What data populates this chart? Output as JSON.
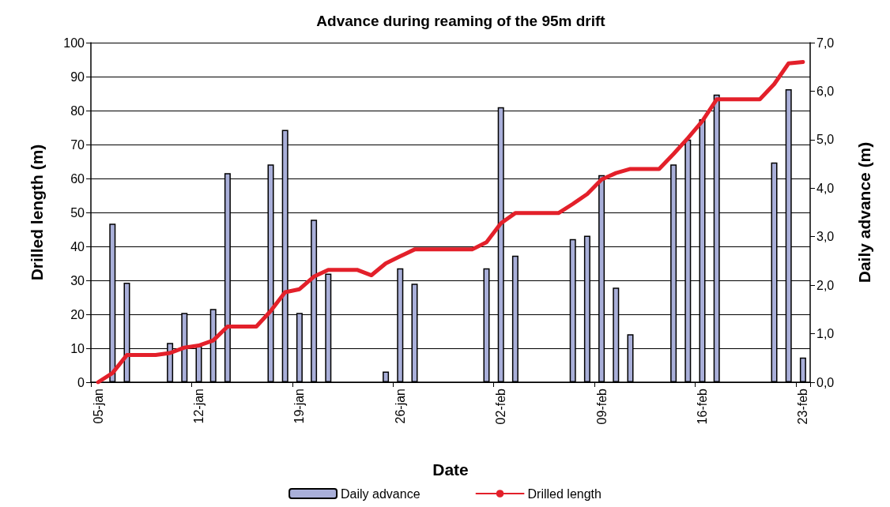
{
  "chart_data": {
    "type": "bar",
    "title": "Advance during reaming of the 95m drift",
    "xlabel": "Date",
    "ylabel": "Drilled length (m)",
    "y2label": "Daily advance (m)",
    "categories": [
      "05-jan",
      null,
      null,
      null,
      null,
      null,
      null,
      "12-jan",
      null,
      null,
      null,
      null,
      null,
      null,
      "19-jan",
      null,
      null,
      null,
      null,
      null,
      null,
      "26-jan",
      null,
      null,
      null,
      null,
      null,
      null,
      "02-feb",
      null,
      null,
      null,
      null,
      null,
      null,
      "09-feb",
      null,
      null,
      null,
      null,
      null,
      null,
      "16-feb",
      null,
      null,
      null,
      null,
      null,
      null,
      "23-feb"
    ],
    "series": [
      {
        "name": "Daily advance",
        "axis": "y2",
        "color": "#a9afd9",
        "values": [
          null,
          3.27,
          2.05,
          null,
          null,
          0.81,
          1.43,
          0.75,
          1.51,
          4.31,
          null,
          null,
          4.49,
          5.2,
          1.43,
          3.35,
          2.24,
          null,
          null,
          null,
          0.22,
          2.35,
          2.03,
          null,
          null,
          null,
          null,
          2.35,
          5.67,
          2.61,
          null,
          null,
          null,
          2.95,
          3.02,
          4.27,
          1.95,
          0.99,
          null,
          null,
          4.49,
          5.0,
          5.42,
          5.93,
          null,
          null,
          null,
          4.53,
          6.04,
          0.51
        ]
      },
      {
        "name": "Drilled length",
        "type": "line",
        "color": "#e3202a",
        "values": [
          0,
          2.7,
          8.0,
          8.0,
          8.0,
          8.6,
          10.2,
          10.8,
          12.3,
          16.4,
          16.4,
          16.4,
          21.0,
          26.5,
          27.4,
          31.1,
          33.1,
          33.1,
          33.1,
          31.5,
          35.0,
          37.1,
          39.1,
          39.1,
          39.1,
          39.1,
          39.1,
          41.2,
          46.8,
          49.8,
          49.8,
          49.8,
          49.8,
          52.5,
          55.4,
          59.7,
          61.6,
          62.8,
          62.8,
          62.8,
          67.2,
          71.9,
          76.9,
          83.3,
          83.3,
          83.3,
          83.3,
          87.8,
          93.9,
          94.3
        ]
      }
    ],
    "ylim": [
      0,
      100
    ],
    "yticks": [
      0,
      10,
      20,
      30,
      40,
      50,
      60,
      70,
      80,
      90,
      100
    ],
    "y2lim": [
      0,
      7
    ],
    "y2ticks": [
      {
        "value": 0,
        "label": "0,0"
      },
      {
        "value": 1,
        "label": "1,0"
      },
      {
        "value": 2,
        "label": "2,0"
      },
      {
        "value": 3,
        "label": "3,0"
      },
      {
        "value": 4,
        "label": "4,0"
      },
      {
        "value": 5,
        "label": "5,0"
      },
      {
        "value": 6,
        "label": "6,0"
      },
      {
        "value": 7,
        "label": "7,0"
      }
    ],
    "grid": "y",
    "legend": "bottom",
    "marker": "none",
    "line_style": "solid"
  }
}
